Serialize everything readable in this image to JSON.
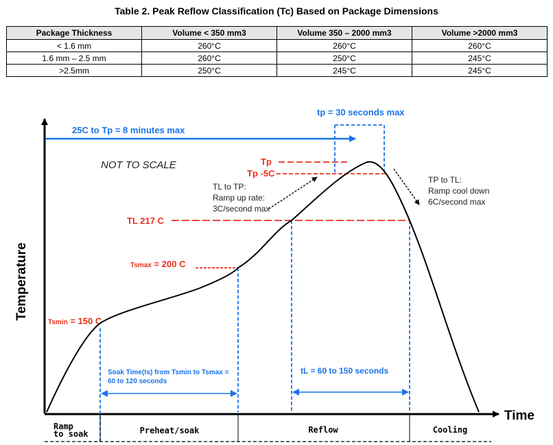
{
  "table": {
    "title": "Table 2. Peak Reflow Classification (Tc) Based on Package Dimensions",
    "headers": [
      "Package Thickness",
      "Volume < 350 mm3",
      "Volume 350 – 2000 mm3",
      "Volume >2000 mm3"
    ],
    "rows": [
      [
        "< 1.6 mm",
        "260°C",
        "260°C",
        "260°C"
      ],
      [
        "1.6 mm – 2.5 mm",
        "260°C",
        "250°C",
        "245°C"
      ],
      [
        ">2.5mm",
        "250°C",
        "245°C",
        "245°C"
      ]
    ]
  },
  "diagram": {
    "y_axis_label": "Temperature",
    "x_axis_label": "Time",
    "not_to_scale": "NOT TO SCALE",
    "ramp_to_peak": "25C to Tp = 8 minutes max",
    "tp_time": {
      "sym": "tp",
      "text": " = 30 seconds max"
    },
    "tp_label": "Tp",
    "tp_minus_5": "Tp -5C",
    "tl_label": "TL 217 C",
    "tsmax": {
      "sym": "Tsmax",
      "text": " = 200 C"
    },
    "tsmin": {
      "sym": "Tsmin",
      "text": " = 150 C"
    },
    "ramp_up": [
      "TL to TP:",
      "Ramp up rate:",
      "3C/second max"
    ],
    "ramp_down": [
      "TP to TL:",
      "Ramp cool down",
      "6C/second max"
    ],
    "soak_time": [
      "Soak Time(ts) from Tsmin to Tsmax =",
      "60 to 120 seconds"
    ],
    "tl_time": "tL = 60 to 150 seconds",
    "phases": [
      "Ramp to soak",
      "Preheat/soak",
      "Reflow",
      "Cooling"
    ],
    "colors": {
      "red": "#e8301c",
      "blue": "#1a73e8",
      "curve": "#000000"
    }
  }
}
